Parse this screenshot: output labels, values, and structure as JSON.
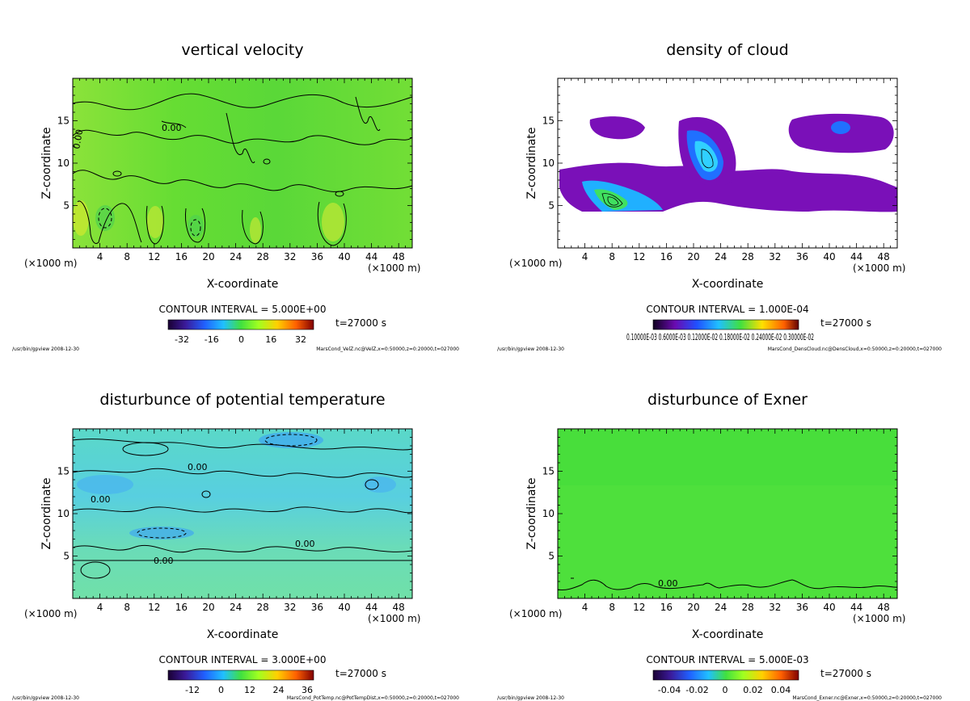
{
  "chart_data": [
    {
      "type": "heatmap",
      "title": "vertical velocity",
      "xlabel": "X-coordinate",
      "ylabel": "Z-coordinate",
      "xunit": "(×1000 m)",
      "xticks": [
        4,
        8,
        12,
        16,
        20,
        24,
        28,
        32,
        36,
        40,
        44,
        48
      ],
      "yticks": [
        5,
        10,
        15
      ],
      "xlim": [
        0,
        50
      ],
      "ylim": [
        0,
        20
      ],
      "contour_interval": "CONTOUR INTERVAL = 5.000E+00",
      "time": "t=27000 s",
      "colorbar_ticks": [
        "-32",
        "-16",
        "0",
        "16",
        "32"
      ],
      "contour_labels": [
        "0.00",
        "0.00"
      ],
      "footer_left": "/usr/bin/gpview  2008-12-30",
      "footer_right": "MarsCond_VelZ.nc@VelZ,x=0:50000,z=0:20000,t=027000"
    },
    {
      "type": "heatmap",
      "title": "density of cloud",
      "xlabel": "X-coordinate",
      "ylabel": "Z-coordinate",
      "xunit": "(×1000 m)",
      "xticks": [
        4,
        8,
        12,
        16,
        20,
        24,
        28,
        32,
        36,
        40,
        44,
        48
      ],
      "yticks": [
        5,
        10,
        15
      ],
      "xlim": [
        0,
        50
      ],
      "ylim": [
        0,
        20
      ],
      "contour_interval": "CONTOUR INTERVAL = 1.000E-04",
      "time": "t=27000 s",
      "colorbar_ticks": [
        "0.10000E-03 0.6000E-03 0.12000E-02 0.18000E-02 0.24000E-02 0.30000E-02"
      ],
      "contour_labels": [],
      "footer_left": "/usr/bin/gpview  2008-12-30",
      "footer_right": "MarsCond_DensCloud.nc@DensCloud,x=0:50000,z=0:20000,t=027000"
    },
    {
      "type": "heatmap",
      "title": "disturbunce of potential temperature",
      "xlabel": "X-coordinate",
      "ylabel": "Z-coordinate",
      "xunit": "(×1000 m)",
      "xticks": [
        4,
        8,
        12,
        16,
        20,
        24,
        28,
        32,
        36,
        40,
        44,
        48
      ],
      "yticks": [
        5,
        10,
        15
      ],
      "xlim": [
        0,
        50
      ],
      "ylim": [
        0,
        20
      ],
      "contour_interval": "CONTOUR INTERVAL = 3.000E+00",
      "time": "t=27000 s",
      "colorbar_ticks": [
        "-12",
        "0",
        "12",
        "24",
        "36"
      ],
      "contour_labels": [
        "0.00",
        "0.00",
        "0.00",
        "0.00"
      ],
      "footer_left": "/usr/bin/gpview  2008-12-30",
      "footer_right": "MarsCond_PotTemp.nc@PotTempDist,x=0:50000,z=0:20000,t=027000"
    },
    {
      "type": "heatmap",
      "title": "disturbunce of Exner",
      "xlabel": "X-coordinate",
      "ylabel": "Z-coordinate",
      "xunit": "(×1000 m)",
      "xticks": [
        4,
        8,
        12,
        16,
        20,
        24,
        28,
        32,
        36,
        40,
        44,
        48
      ],
      "yticks": [
        5,
        10,
        15
      ],
      "xlim": [
        0,
        50
      ],
      "ylim": [
        0,
        20
      ],
      "contour_interval": "CONTOUR INTERVAL = 5.000E-03",
      "time": "t=27000 s",
      "colorbar_ticks": [
        "-0.04",
        "-0.02",
        "0",
        "0.02",
        "0.04"
      ],
      "contour_labels": [
        "0.00"
      ],
      "footer_left": "/usr/bin/gpview  2008-12-30",
      "footer_right": "MarsCond_Exner.nc@Exner,x=0:50000,z=0:20000,t=027000"
    }
  ]
}
